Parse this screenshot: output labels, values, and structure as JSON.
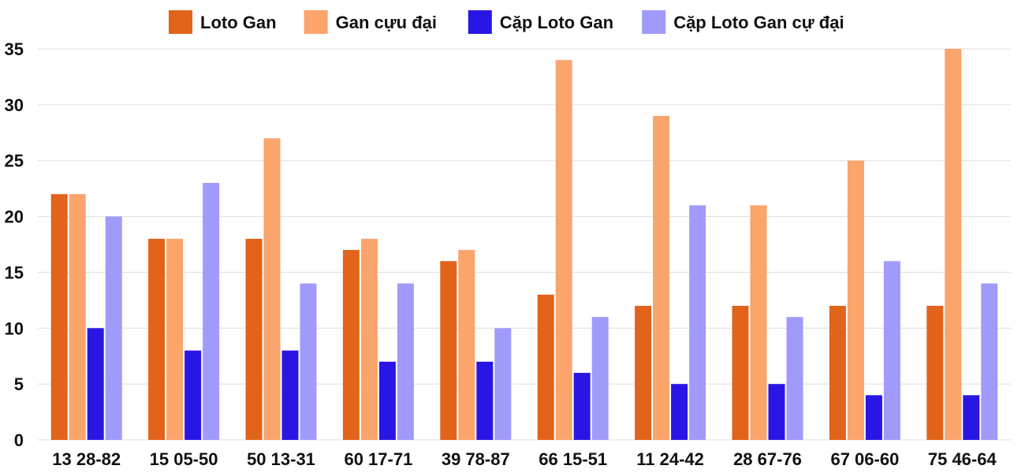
{
  "chart_data": {
    "type": "bar",
    "categories": [
      "13 28-82",
      "15 05-50",
      "50 13-31",
      "60 17-71",
      "39 78-87",
      "66 15-51",
      "11 24-42",
      "28 67-76",
      "67 06-60",
      "75 46-64"
    ],
    "series": [
      {
        "name": "Loto Gan",
        "color": "#e2631a",
        "values": [
          22,
          18,
          18,
          17,
          16,
          13,
          12,
          12,
          12,
          12
        ]
      },
      {
        "name": "Gan cựu đại",
        "color": "#fba46c",
        "values": [
          22,
          18,
          27,
          18,
          17,
          34,
          29,
          21,
          25,
          35
        ]
      },
      {
        "name": "Cặp Loto Gan",
        "color": "#2a16e4",
        "values": [
          10,
          8,
          8,
          7,
          7,
          6,
          5,
          5,
          4,
          4
        ]
      },
      {
        "name": "Cặp Loto Gan cự đại",
        "color": "#a09bfb",
        "values": [
          20,
          23,
          14,
          14,
          10,
          11,
          21,
          11,
          16,
          14
        ]
      }
    ],
    "yticks": [
      "0",
      "5",
      "10",
      "15",
      "20",
      "25",
      "30",
      "35"
    ],
    "ylim": [
      0,
      35
    ],
    "title": "",
    "xlabel": "",
    "ylabel": "",
    "legend_position": "top-center",
    "grid": true
  }
}
